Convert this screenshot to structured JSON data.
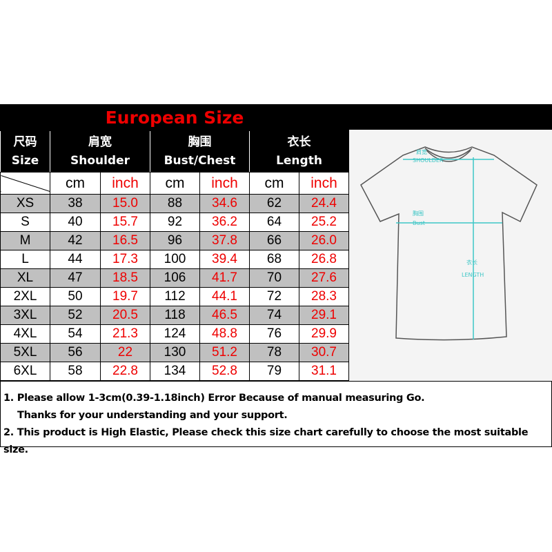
{
  "title": "European Size",
  "headers": {
    "size_cn": "尺码",
    "size_en": "Size",
    "shoulder_cn": "肩宽",
    "shoulder_en": "Shoulder",
    "bust_cn": "胸围",
    "bust_en": "Bust/Chest",
    "length_cn": "衣长",
    "length_en": "Length"
  },
  "units": {
    "cm": "cm",
    "inch": "inch"
  },
  "rows": [
    [
      "XS",
      "38",
      "15.0",
      "88",
      "34.6",
      "62",
      "24.4"
    ],
    [
      "S",
      "40",
      "15.7",
      "92",
      "36.2",
      "64",
      "25.2"
    ],
    [
      "M",
      "42",
      "16.5",
      "96",
      "37.8",
      "66",
      "26.0"
    ],
    [
      "L",
      "44",
      "17.3",
      "100",
      "39.4",
      "68",
      "26.8"
    ],
    [
      "XL",
      "47",
      "18.5",
      "106",
      "41.7",
      "70",
      "27.6"
    ],
    [
      "2XL",
      "50",
      "19.7",
      "112",
      "44.1",
      "72",
      "28.3"
    ],
    [
      "3XL",
      "52",
      "20.5",
      "118",
      "46.5",
      "74",
      "29.1"
    ],
    [
      "4XL",
      "54",
      "21.3",
      "124",
      "48.8",
      "76",
      "29.9"
    ],
    [
      "5XL",
      "56",
      "22",
      "130",
      "51.2",
      "78",
      "30.7"
    ],
    [
      "6XL",
      "58",
      "22.8",
      "134",
      "52.8",
      "79",
      "31.1"
    ]
  ],
  "diagram": {
    "shoulder_cn": "肩宽",
    "shoulder": "SHOULDER",
    "bust_cn": "胸围",
    "bust": "Bust",
    "length_cn": "衣长",
    "length": "LENGTH",
    "line_color": "#3cc6c6"
  },
  "notes": [
    "1. Please allow 1-3cm(0.39-1.18inch) Error Because of manual measuring Go.",
    "Thanks for your understanding  and your support.",
    "2. This product is High Elastic, Please check this size chart carefully to choose the most suitable size."
  ]
}
